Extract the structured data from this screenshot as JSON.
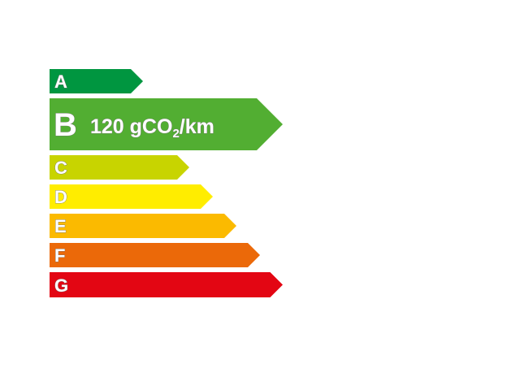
{
  "label": {
    "classes": [
      {
        "letter": "A",
        "color": "#009640"
      },
      {
        "letter": "B",
        "color": "#52AE32",
        "value": "120 gCO",
        "subscript": "2",
        "unit": "/km",
        "selected": true
      },
      {
        "letter": "C",
        "color": "#C8D400"
      },
      {
        "letter": "D",
        "color": "#FFED00"
      },
      {
        "letter": "E",
        "color": "#FBBA00"
      },
      {
        "letter": "F",
        "color": "#EB6909"
      },
      {
        "letter": "G",
        "color": "#E30613"
      }
    ]
  }
}
